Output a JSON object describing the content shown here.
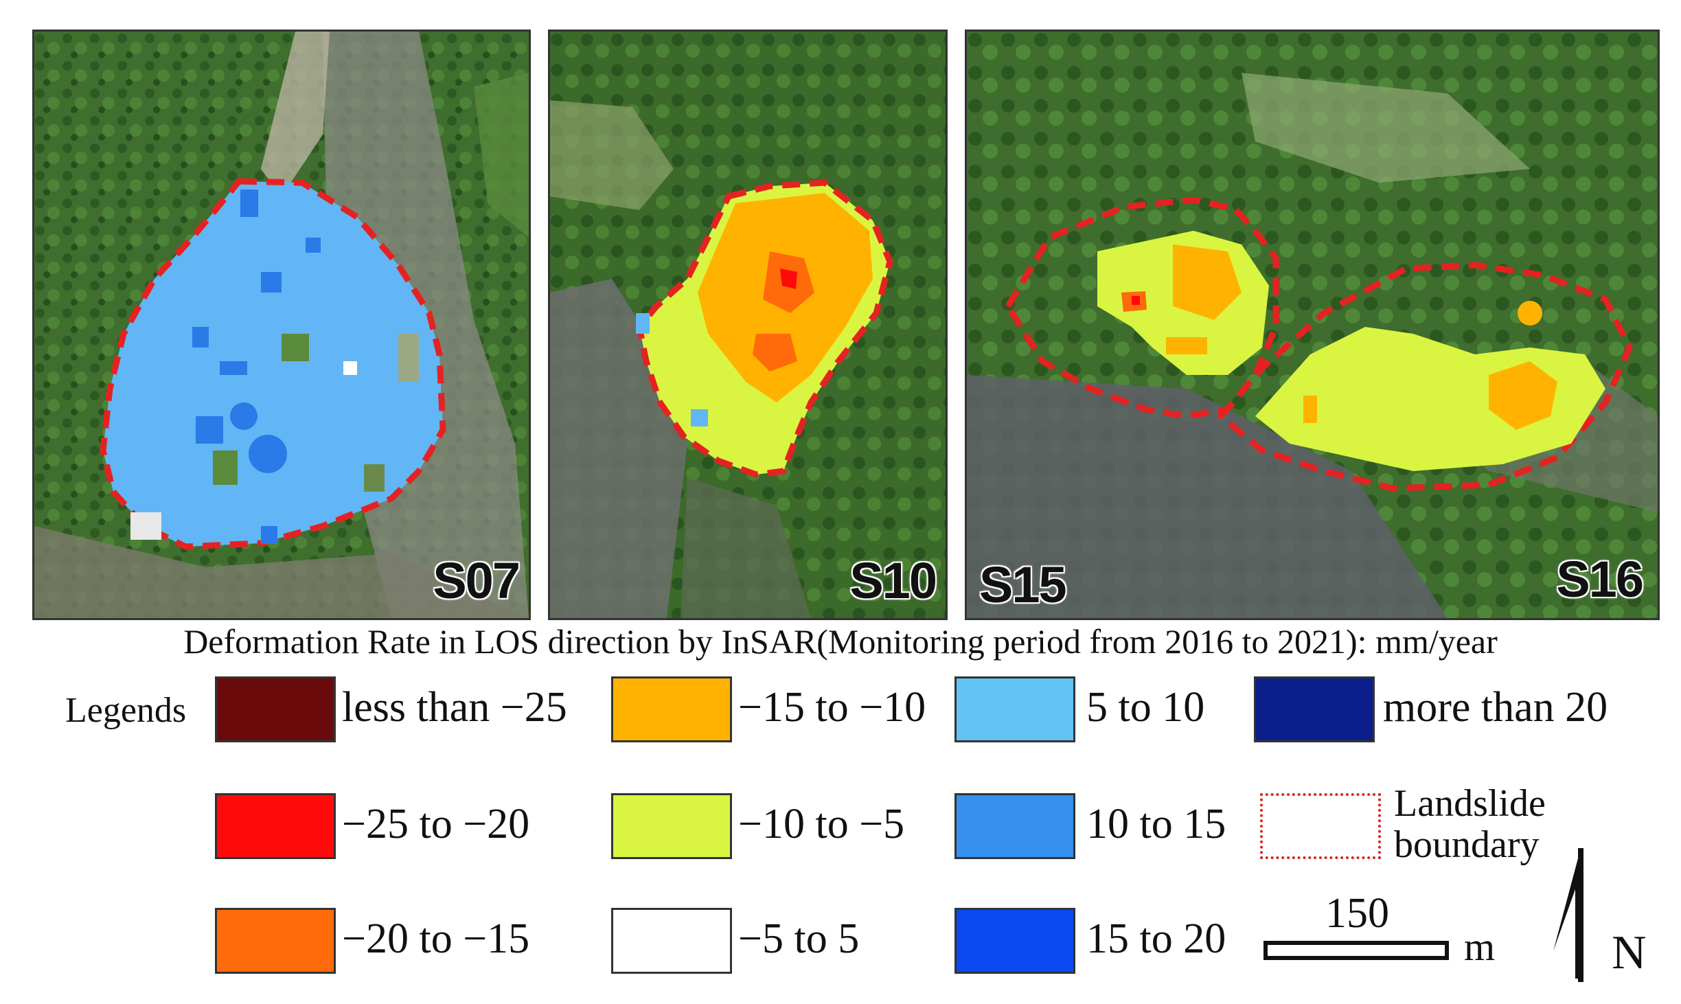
{
  "panels": [
    {
      "label": "S07"
    },
    {
      "label": "S10"
    },
    {
      "label": "S15",
      "label2": "S16"
    }
  ],
  "caption": "Deformation Rate in LOS direction by InSAR(Monitoring period from 2016 to 2021): mm/year",
  "legend": {
    "title": "Legends",
    "items": [
      {
        "label": "less than −25",
        "color": "#6b0a0a"
      },
      {
        "label": "−25 to −20",
        "color": "#ff0a0a"
      },
      {
        "label": "−20 to −15",
        "color": "#ff6a0a"
      },
      {
        "label": "−15 to −10",
        "color": "#ffb300"
      },
      {
        "label": "−10 to −5",
        "color": "#d9f542"
      },
      {
        "label": "−5 to 5",
        "color": "#ffffff"
      },
      {
        "label": "5 to 10",
        "color": "#62c3f5"
      },
      {
        "label": "10 to 15",
        "color": "#3590ee"
      },
      {
        "label": "15 to 20",
        "color": "#0a4af0"
      },
      {
        "label": "more than 20",
        "color": "#0a1f8c"
      }
    ],
    "boundary_label": "Landslide boundary",
    "boundary_color": "#e02020"
  },
  "scale": {
    "value": "150",
    "unit": "m"
  },
  "north": "N"
}
